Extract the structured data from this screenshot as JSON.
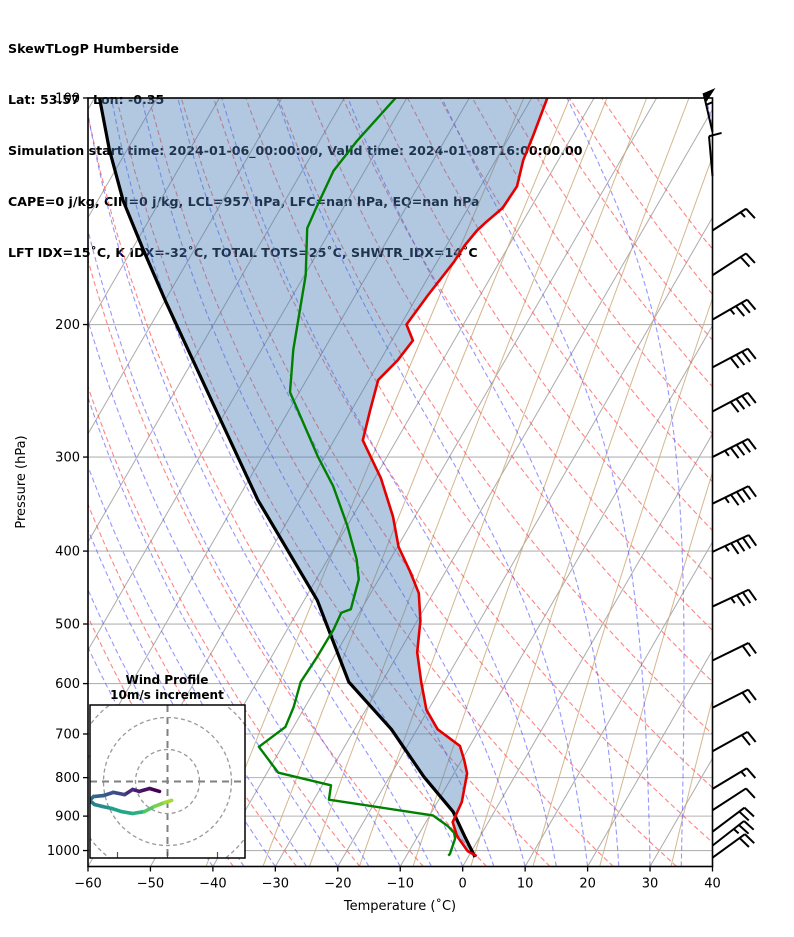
{
  "header": {
    "line1": "SkewTLogP Humberside",
    "line2": "Lat: 53.57   Lon: -0.35",
    "line3": "Simulation start time: 2024-01-06_00:00:00, Valid time: 2024-01-08T16:00:00.00",
    "line4": "CAPE=0 j/kg, CIN=0 j/kg, LCL=957 hPa, LFC=nan hPa, EQ=nan hPa",
    "line5": "LFT IDX=15˚C, K IDX=-32˚C, TOTAL TOTS=25˚C, SHWTR_IDX=14˚C"
  },
  "axes": {
    "xlabel": "Temperature (˚C)",
    "ylabel": "Pressure (hPa)",
    "x_ticks": [
      -60,
      -50,
      -40,
      -30,
      -20,
      -10,
      0,
      10,
      20,
      30,
      40
    ],
    "p_ticks": [
      100,
      200,
      300,
      400,
      500,
      600,
      700,
      800,
      900,
      1000
    ],
    "xlim": [
      -60,
      40
    ],
    "plim": [
      100,
      1050
    ],
    "skew_rotation_deg": 30
  },
  "chart_data": {
    "type": "skewt-logp",
    "title": "SkewTLogP Humberside",
    "temperature_profile": {
      "color": "#e50000",
      "points_p_T": [
        [
          100,
          -57.5
        ],
        [
          112,
          -56.3
        ],
        [
          121,
          -55.6
        ],
        [
          131,
          -54.2
        ],
        [
          140,
          -54.5
        ],
        [
          146,
          -55.8
        ],
        [
          150,
          -56.5
        ],
        [
          157,
          -57.1
        ],
        [
          165,
          -57.3
        ],
        [
          183,
          -58.4
        ],
        [
          200,
          -59.1
        ],
        [
          210,
          -56.6
        ],
        [
          223,
          -57.2
        ],
        [
          237,
          -58.5
        ],
        [
          260,
          -57.0
        ],
        [
          285,
          -55.4
        ],
        [
          320,
          -49.0
        ],
        [
          360,
          -43.5
        ],
        [
          395,
          -39.8
        ],
        [
          425,
          -35.8
        ],
        [
          455,
          -32.3
        ],
        [
          495,
          -29.5
        ],
        [
          545,
          -27.1
        ],
        [
          597,
          -23.7
        ],
        [
          650,
          -20.3
        ],
        [
          690,
          -16.7
        ],
        [
          726,
          -11.6
        ],
        [
          758,
          -9.6
        ],
        [
          790,
          -7.9
        ],
        [
          862,
          -6.1
        ],
        [
          917,
          -5.7
        ],
        [
          957,
          -3.7
        ],
        [
          1002,
          -0.6
        ],
        [
          1017,
          1.3
        ]
      ]
    },
    "dewpoint_profile": {
      "color": "#008000",
      "points_p_T": [
        [
          100,
          -81.8
        ],
        [
          114,
          -84.0
        ],
        [
          125,
          -85.0
        ],
        [
          141,
          -84.3
        ],
        [
          149,
          -83.9
        ],
        [
          172,
          -79.8
        ],
        [
          216,
          -74.9
        ],
        [
          246,
          -71.5
        ],
        [
          300,
          -61.0
        ],
        [
          328,
          -55.9
        ],
        [
          370,
          -50.0
        ],
        [
          410,
          -45.4
        ],
        [
          436,
          -43.2
        ],
        [
          478,
          -41.7
        ],
        [
          483,
          -42.9
        ],
        [
          508,
          -42.6
        ],
        [
          556,
          -42.7
        ],
        [
          597,
          -43.0
        ],
        [
          645,
          -41.8
        ],
        [
          685,
          -41.3
        ],
        [
          728,
          -43.7
        ],
        [
          788,
          -38.2
        ],
        [
          819,
          -28.6
        ],
        [
          856,
          -27.6
        ],
        [
          898,
          -9.5
        ],
        [
          928,
          -6.1
        ],
        [
          947,
          -4.5
        ],
        [
          964,
          -3.8
        ],
        [
          1010,
          -3.2
        ],
        [
          1016,
          -3.3
        ]
      ]
    },
    "parcel_profile": {
      "color": "#000000",
      "points_p_T": [
        [
          100,
          -129.2
        ],
        [
          117,
          -122.9
        ],
        [
          137,
          -115.9
        ],
        [
          159,
          -108.2
        ],
        [
          186,
          -99.9
        ],
        [
          250,
          -83.8
        ],
        [
          342,
          -66.7
        ],
        [
          465,
          -47.9
        ],
        [
          597,
          -35.3
        ],
        [
          690,
          -24.1
        ],
        [
          798,
          -14.5
        ],
        [
          888,
          -6.6
        ],
        [
          957,
          -2.5
        ],
        [
          1020,
          1.1
        ]
      ]
    },
    "shaded_region": {
      "between": [
        "parcel_profile",
        "temperature_profile"
      ],
      "fill": "rgba(70,125,180,0.42)"
    },
    "reference_isopleths": {
      "isotherms_C": {
        "from": -130,
        "to": 40,
        "step": 10,
        "color": "#ababab",
        "style": "solid"
      },
      "dry_adiabats_C": {
        "from": -40,
        "to": 160,
        "step": 10,
        "color": "rgba(255,80,80,0.70)",
        "style": "dashed"
      },
      "moist_adiabats_C": {
        "from": -40,
        "to": 45,
        "step": 5,
        "color": "rgba(80,80,255,0.60)",
        "style": "dashed"
      },
      "mixing_ratio_g_kg": [
        0.1,
        0.25,
        0.5,
        1,
        2,
        4,
        8,
        16,
        32
      ],
      "mixing_ratio_color": "rgba(205,170,125,0.85)"
    },
    "wind_barbs": {
      "units": "kt",
      "barbs": [
        {
          "p": 111,
          "angle": 103,
          "kt": 55
        },
        {
          "p": 127,
          "angle": 95,
          "kt": 10
        },
        {
          "p": 150,
          "angle": 33,
          "kt": 15
        },
        {
          "p": 172,
          "angle": 33,
          "kt": 20
        },
        {
          "p": 197,
          "angle": 30,
          "kt": 35
        },
        {
          "p": 228,
          "angle": 28,
          "kt": 40
        },
        {
          "p": 261,
          "angle": 28,
          "kt": 40
        },
        {
          "p": 300,
          "angle": 27,
          "kt": 45
        },
        {
          "p": 346,
          "angle": 26,
          "kt": 45
        },
        {
          "p": 401,
          "angle": 25,
          "kt": 45
        },
        {
          "p": 474,
          "angle": 25,
          "kt": 35
        },
        {
          "p": 559,
          "angle": 26,
          "kt": 20
        },
        {
          "p": 646,
          "angle": 27,
          "kt": 20
        },
        {
          "p": 738,
          "angle": 29,
          "kt": 20
        },
        {
          "p": 828,
          "angle": 31,
          "kt": 15
        },
        {
          "p": 884,
          "angle": 33,
          "kt": 10
        },
        {
          "p": 944,
          "angle": 37,
          "kt": 20
        },
        {
          "p": 985,
          "angle": 38,
          "kt": 25
        },
        {
          "p": 1022,
          "angle": 36,
          "kt": 20
        }
      ]
    },
    "hodograph": {
      "title": "Wind Profile",
      "subtitle": "10m/s increment",
      "ring_increment_m_s": 10,
      "rings_m_s": [
        10,
        20,
        30
      ],
      "trace_u_v_m_s": [
        [
          -2.5,
          -3.1
        ],
        [
          -5.6,
          -2.2
        ],
        [
          -8.8,
          -3.1
        ],
        [
          -10.9,
          -2.5
        ],
        [
          -13.4,
          -4.1
        ],
        [
          -16.9,
          -3.4
        ],
        [
          -20.0,
          -4.4
        ],
        [
          -23.1,
          -4.7
        ],
        [
          -24.4,
          -5.9
        ],
        [
          -22.8,
          -7.2
        ],
        [
          -20.3,
          -7.8
        ],
        [
          -17.5,
          -8.4
        ],
        [
          -14.4,
          -9.4
        ],
        [
          -10.9,
          -10.0
        ],
        [
          -7.2,
          -9.4
        ],
        [
          -4.1,
          -7.8
        ],
        [
          -0.9,
          -6.6
        ],
        [
          1.3,
          -5.9
        ]
      ],
      "trace_colors": [
        "#440154",
        "#471063",
        "#481d6f",
        "#472a7a",
        "#414487",
        "#3b528b",
        "#355f8d",
        "#2f6c8e",
        "#2a768e",
        "#25848e",
        "#21918c",
        "#1fa188",
        "#22a884",
        "#2cb17e",
        "#54c568",
        "#7ad151",
        "#a5db36",
        "#fde725"
      ]
    }
  }
}
